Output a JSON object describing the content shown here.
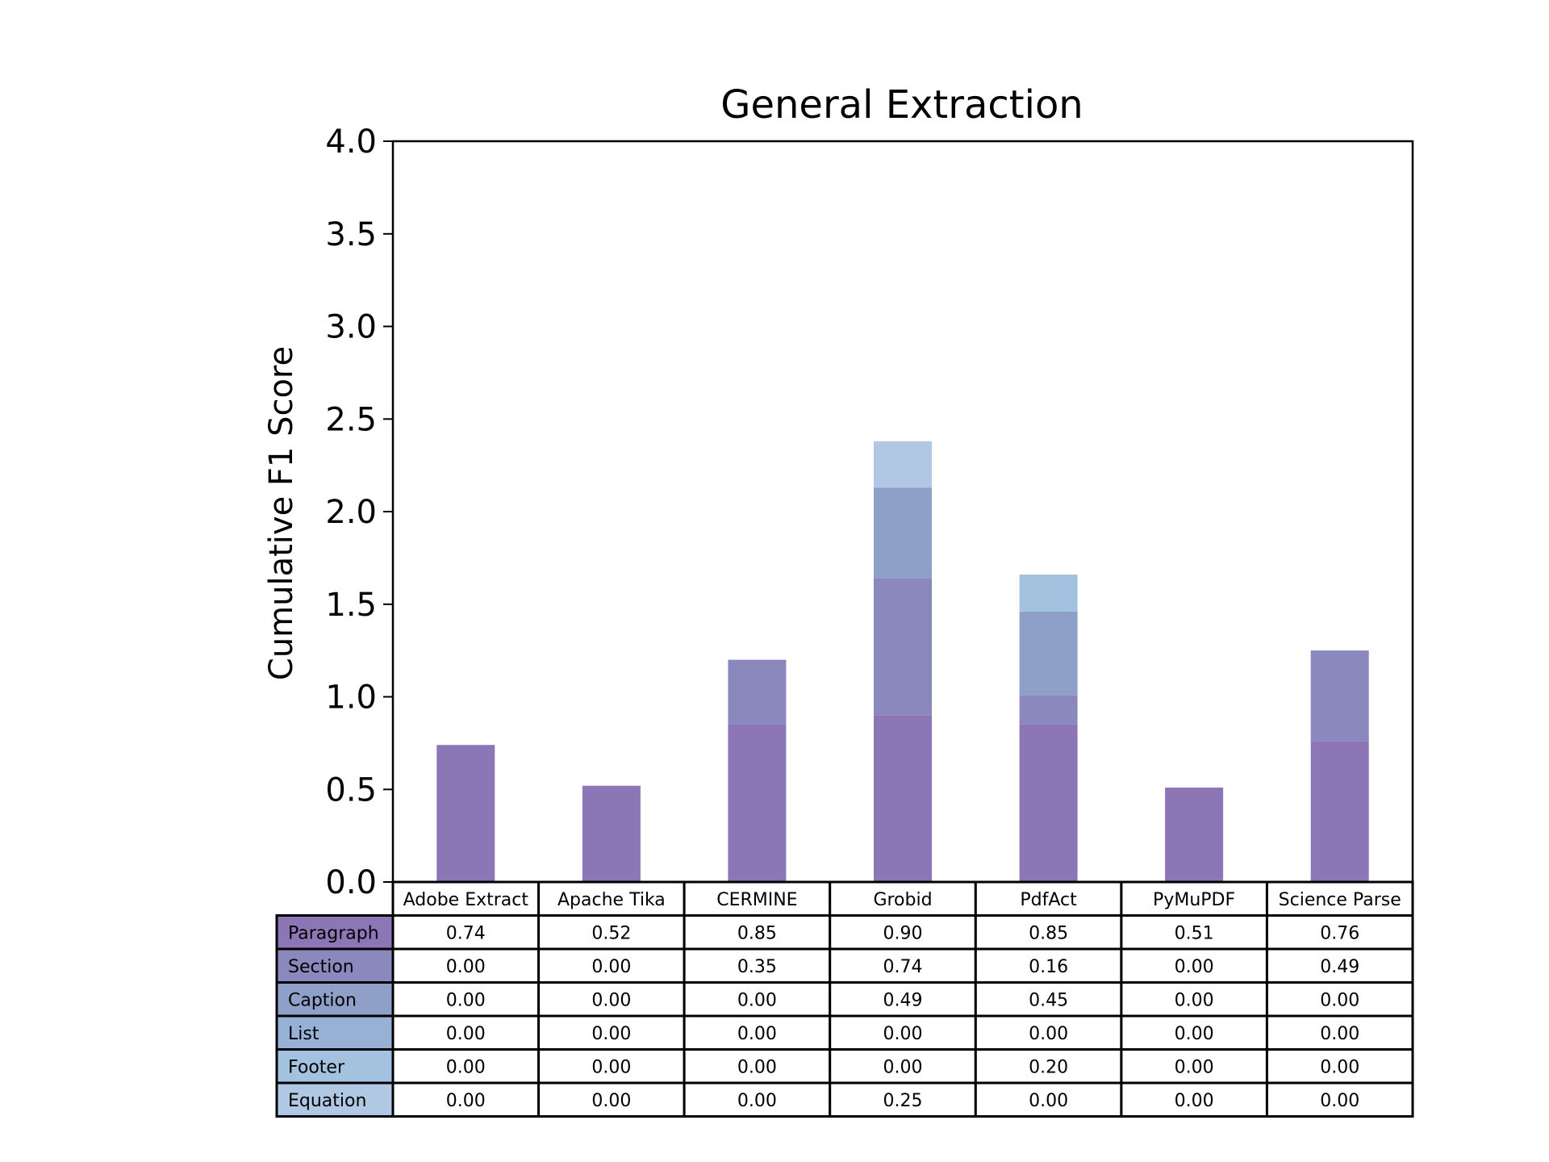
{
  "chart_data": {
    "type": "bar",
    "stacked": true,
    "title": "General Extraction",
    "xlabel": "",
    "ylabel": "Cumulative F1 Score",
    "ylim": [
      0,
      4.0
    ],
    "yticks": [
      "0.0",
      "0.5",
      "1.0",
      "1.5",
      "2.0",
      "2.5",
      "3.0",
      "3.5",
      "4.0"
    ],
    "grid": false,
    "legend": "table below chart",
    "categories": [
      "Adobe Extract",
      "Apache Tika",
      "CERMINE",
      "Grobid",
      "PdfAct",
      "PyMuPDF",
      "Science Parse"
    ],
    "series": [
      {
        "name": "Paragraph",
        "color": "#8c76b6",
        "values": [
          0.74,
          0.52,
          0.85,
          0.9,
          0.85,
          0.51,
          0.76
        ]
      },
      {
        "name": "Section",
        "color": "#8b88bd",
        "values": [
          0.0,
          0.0,
          0.35,
          0.74,
          0.16,
          0.0,
          0.49
        ]
      },
      {
        "name": "Caption",
        "color": "#8e9fc8",
        "values": [
          0.0,
          0.0,
          0.0,
          0.49,
          0.45,
          0.0,
          0.0
        ]
      },
      {
        "name": "List",
        "color": "#97b0d6",
        "values": [
          0.0,
          0.0,
          0.0,
          0.0,
          0.0,
          0.0,
          0.0
        ]
      },
      {
        "name": "Footer",
        "color": "#a2c2df",
        "values": [
          0.0,
          0.0,
          0.0,
          0.0,
          0.2,
          0.0,
          0.0
        ]
      },
      {
        "name": "Equation",
        "color": "#b0c8e3",
        "values": [
          0.0,
          0.0,
          0.0,
          0.25,
          0.0,
          0.0,
          0.0
        ]
      }
    ]
  }
}
